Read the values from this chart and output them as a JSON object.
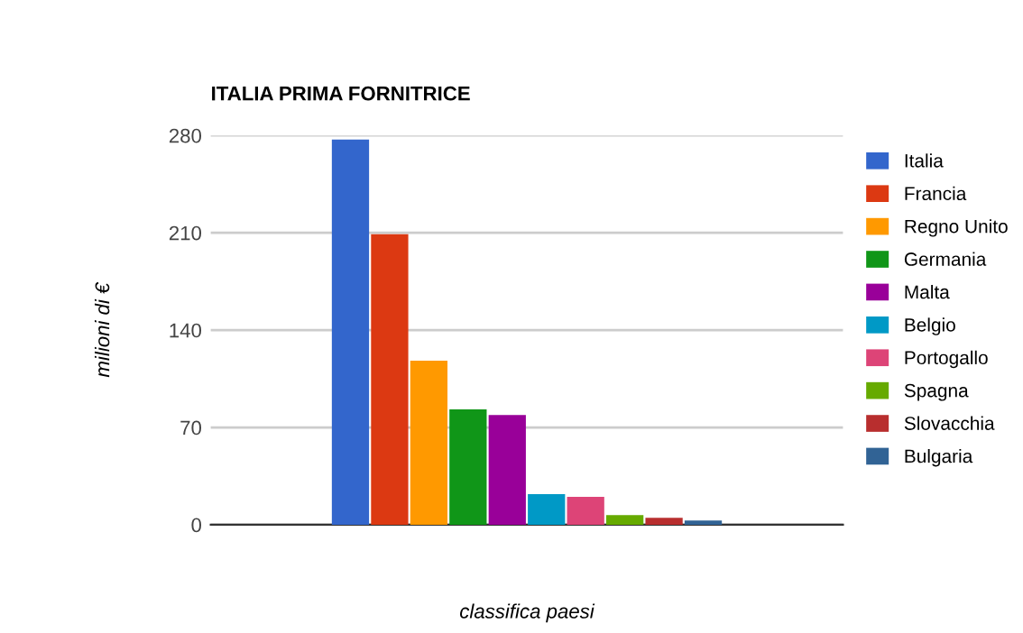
{
  "chart_data": {
    "type": "bar",
    "title": "ITALIA PRIMA FORNITRICE",
    "xlabel": "classifica paesi",
    "ylabel": "milioni di €",
    "categories": [
      null
    ],
    "series": [
      {
        "name": "Italia",
        "color": "#3366cc",
        "values": [
          277
        ]
      },
      {
        "name": "Francia",
        "color": "#dc3912",
        "values": [
          209
        ]
      },
      {
        "name": "Regno Unito",
        "color": "#ff9900",
        "values": [
          118
        ]
      },
      {
        "name": "Germania",
        "color": "#109618",
        "values": [
          83
        ]
      },
      {
        "name": "Malta",
        "color": "#990099",
        "values": [
          79
        ]
      },
      {
        "name": "Belgio",
        "color": "#0099c6",
        "values": [
          22
        ]
      },
      {
        "name": "Portogallo",
        "color": "#dd4477",
        "values": [
          20
        ]
      },
      {
        "name": "Spagna",
        "color": "#66aa00",
        "values": [
          7
        ]
      },
      {
        "name": "Slovacchia",
        "color": "#b82e2e",
        "values": [
          5
        ]
      },
      {
        "name": "Bulgaria",
        "color": "#316395",
        "values": [
          3
        ]
      }
    ],
    "ylim": [
      0,
      280
    ],
    "yticks": [
      0,
      70,
      140,
      210,
      280
    ],
    "grid": "y",
    "legend": "right"
  }
}
